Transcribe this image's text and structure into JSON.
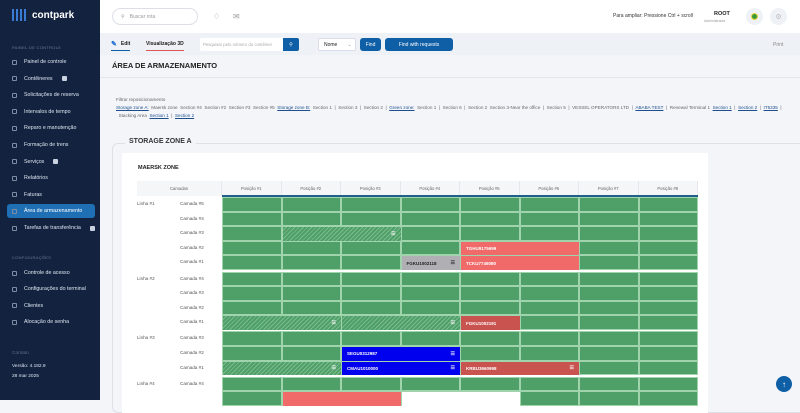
{
  "brand": {
    "name": "contpark"
  },
  "sidebar": {
    "section1": "PAINEL DE CONTROLE",
    "items": [
      {
        "label": "Painel de controle",
        "icon": "dashboard-icon"
      },
      {
        "label": "Contêineres",
        "icon": "container-icon",
        "badge": true
      },
      {
        "label": "Solicitações de reserva",
        "icon": "booking-icon"
      },
      {
        "label": "Intervalos de tempo",
        "icon": "clock-icon"
      },
      {
        "label": "Reparo e manutenção",
        "icon": "wrench-icon"
      },
      {
        "label": "Formação de trens",
        "icon": "train-icon"
      },
      {
        "label": "Serviços",
        "icon": "services-icon",
        "badge": true
      },
      {
        "label": "Relatórios",
        "icon": "reports-icon"
      },
      {
        "label": "Faturas",
        "icon": "invoice-icon"
      },
      {
        "label": "Área de armazenamento",
        "icon": "storage-icon",
        "active": true
      },
      {
        "label": "Tarefas de transferência",
        "icon": "transfer-icon",
        "badge": true
      }
    ],
    "section2": "CONFIGURAÇÕES",
    "settings": [
      {
        "label": "Controle de acesso",
        "icon": "lock-icon"
      },
      {
        "label": "Configurações do terminal",
        "icon": "settings-icon"
      },
      {
        "label": "Clientes",
        "icon": "users-icon"
      },
      {
        "label": "Alocação de senha",
        "icon": "key-icon"
      }
    ],
    "contact": "Contato",
    "version": "Versão: 4.182.9",
    "date": "28 mar 2025"
  },
  "header": {
    "search_placeholder": "Buscar rota",
    "zoom_tip": "Para ampliar: Pressione Ctrl + scroll",
    "user": "ROOT",
    "user_sub": "Administrador"
  },
  "toolbar": {
    "edit": "Edit",
    "view3d": "Visualização 3D",
    "search_placeholder": "Pesquisar pelo número do contêiner",
    "select": "Nome",
    "find": "Find",
    "find_requests": "Find with requests",
    "print": "Print"
  },
  "page": {
    "title": "ÁREA DE ARMAZENAMENTO"
  },
  "filters": {
    "label": "Filtrar reposicionamento",
    "items": [
      {
        "t": "Storage zone A:",
        "link": true
      },
      {
        "t": "Maersk zone"
      },
      {
        "t": "Section #4"
      },
      {
        "t": "Section #2"
      },
      {
        "t": "Section #3"
      },
      {
        "t": "Section #5"
      },
      {
        "t": "Storage zone B:",
        "link": true
      },
      {
        "t": "Section 1"
      },
      {
        "t": "|"
      },
      {
        "t": "Section 3"
      },
      {
        "t": "|"
      },
      {
        "t": "Section 2"
      },
      {
        "t": "|"
      },
      {
        "t": "Green zone:",
        "link": true
      },
      {
        "t": "Section 1"
      },
      {
        "t": "|"
      },
      {
        "t": "Section 6"
      },
      {
        "t": "|"
      },
      {
        "t": "Section 2"
      },
      {
        "t": "Section 3-Near the office"
      },
      {
        "t": "|"
      },
      {
        "t": "Section 5"
      },
      {
        "t": "|"
      },
      {
        "t": "VESSEL OPERATORS LTD"
      },
      {
        "t": "|"
      },
      {
        "t": "ABABA TEST",
        "link": true
      },
      {
        "t": "|"
      },
      {
        "t": "Renewal Terminal 1"
      },
      {
        "t": "Section 1",
        "link": true
      },
      {
        "t": "|"
      },
      {
        "t": "Section 2",
        "link": true
      },
      {
        "t": "|"
      },
      {
        "t": "IT5335",
        "link": true
      },
      {
        "t": "|"
      },
      {
        "t": "Stacking Area"
      },
      {
        "t": "Section 1",
        "link": true
      },
      {
        "t": "|"
      },
      {
        "t": "Section 2",
        "link": true
      }
    ]
  },
  "storage": {
    "zone": "STORAGE ZONE A",
    "section": "MAERSK ZONE",
    "layers_header": "Camadas",
    "positions": [
      "Posição #1",
      "Posição #2",
      "Posição #3",
      "Posição #4",
      "Posição #5",
      "Posição #6",
      "Posição #7",
      "Posição #8"
    ],
    "rows": [
      {
        "line": "Linha #1",
        "layer": "Camada #5",
        "blocks": []
      },
      {
        "line": "",
        "layer": "Camada #4",
        "blocks": []
      },
      {
        "line": "",
        "layer": "Camada #3",
        "blocks": [
          {
            "start": 2,
            "span": 2,
            "type": "hatch",
            "label": "",
            "icon": true
          }
        ]
      },
      {
        "line": "",
        "layer": "Camada #2",
        "blocks": [
          {
            "start": 5,
            "span": 2,
            "type": "red",
            "label": "TGHU9175699"
          }
        ]
      },
      {
        "line": "",
        "layer": "Camada #1",
        "blocks": [
          {
            "start": 4,
            "span": 1,
            "type": "gray",
            "label": "FGKU1002118",
            "icon": true
          },
          {
            "start": 5,
            "span": 2,
            "type": "red",
            "label": "TCKU7746080"
          }
        ]
      },
      {
        "line": "Linha #2",
        "layer": "Camada #4",
        "blocks": []
      },
      {
        "line": "",
        "layer": "Camada #3",
        "blocks": []
      },
      {
        "line": "",
        "layer": "Camada #2",
        "blocks": []
      },
      {
        "line": "",
        "layer": "Camada #1",
        "blocks": [
          {
            "start": 1,
            "span": 2,
            "type": "hatch",
            "label": "",
            "icon": true
          },
          {
            "start": 3,
            "span": 2,
            "type": "hatch",
            "label": "",
            "icon": true
          },
          {
            "start": 5,
            "span": 1,
            "type": "dred",
            "label": "FGKU1002191"
          }
        ]
      },
      {
        "line": "Linha #3",
        "layer": "Camada #3",
        "blocks": []
      },
      {
        "line": "",
        "layer": "Camada #2",
        "blocks": [
          {
            "start": 3,
            "span": 2,
            "type": "blue",
            "label": "SEGU0312987",
            "icon": true
          }
        ]
      },
      {
        "line": "",
        "layer": "Camada #1",
        "blocks": [
          {
            "start": 1,
            "span": 2,
            "type": "hatch",
            "label": "",
            "icon": true
          },
          {
            "start": 3,
            "span": 2,
            "type": "blue",
            "label": "CMAU1010000",
            "icon": true
          },
          {
            "start": 5,
            "span": 2,
            "type": "dred",
            "label": "KRBU3660998",
            "icon": true
          }
        ]
      },
      {
        "line": "Linha #4",
        "layer": "Camada #4",
        "blocks": []
      },
      {
        "line": "",
        "layer": "",
        "blocks": [
          {
            "start": 2,
            "span": 2,
            "type": "red",
            "label": ""
          },
          {
            "start": 4,
            "span": 2,
            "type": "empty",
            "label": ""
          }
        ]
      }
    ]
  },
  "colors": {
    "sidebar": "#13233f",
    "accent": "#0f5fa6",
    "free": "#4f9f68",
    "occupied": "#f06a6a",
    "reserved": "#c9534f",
    "selected": "#0000ee"
  }
}
